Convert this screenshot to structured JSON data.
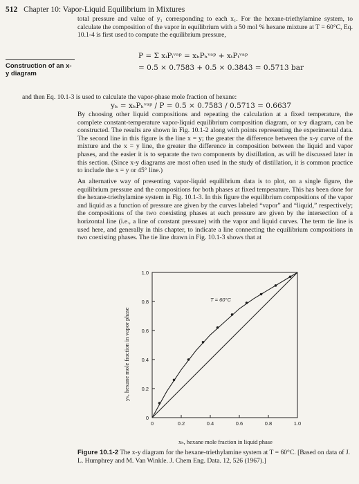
{
  "header": {
    "page_number": "512",
    "chapter": "Chapter 10: Vapor-Liquid Equilibrium in Mixtures"
  },
  "sidebar_heading": "Construction of an x-y diagram",
  "paragraphs": [
    "total pressure and value of y₁ corresponding to each x₁. For the hexane-triethylamine system, to calculate the composition of the vapor in equilibrium with a 50 mol % hexane mixture at T = 60°C, Eq. 10.1-4 is first used to compute the equilibrium pressure,",
    "and then Eq. 10.1-3 is used to calculate the vapor-phase mole fraction of hexane:",
    "By choosing other liquid compositions and repeating the calculation at a fixed temperature, the complete constant-temperature vapor-liquid equilibrium composition diagram, or x-y diagram, can be constructed. The results are shown in Fig. 10.1-2 along with points representing the experimental data. The second line in this figure is the line x = y; the greater the difference between the x-y curve of the mixture and the x = y line, the greater the difference in composition between the liquid and vapor phases, and the easier it is to separate the two components by distillation, as will be discussed later in this section. (Since x-y diagrams are most often used in the study of distillation, it is common practice to include the x = y or 45° line.)",
    "An alternative way of presenting vapor-liquid equilibrium data is to plot, on a single figure, the equilibrium pressure and the compositions for both phases at fixed temperature. This has been done for the hexane-triethylamine system in Fig. 10.1-3. In this figure the equilibrium compositions of the vapor and liquid as a function of pressure are given by the curves labeled “vapor” and “liquid,” respectively; the compositions of the two coexisting phases at each pressure are given by the intersection of a horizontal line (i.e., a line of constant pressure) with the vapor and liquid curves. The term tie line is used here, and generally in this chapter, to indicate a line connecting the equilibrium compositions in two coexisting phases. The tie line drawn in Fig. 10.1-3 shows that at"
  ],
  "equations": {
    "eq1": "P = Σ xᵢPᵢᵛᵃᵖ = xₕPₕᵛᵃᵖ + xₜPₜᵛᵃᵖ",
    "eq2": "= 0.5 × 0.7583 + 0.5 × 0.3843 = 0.5713 bar",
    "eq3": "yₕ = xₕPₕᵛᵃᵖ / P = 0.5 × 0.7583 / 0.5713 = 0.6637"
  },
  "chart_data": {
    "type": "line",
    "annotation": "T = 60°C",
    "xlabel": "xₕ, hexane mole fraction in liquid phase",
    "ylabel": "yₕ, hexane mole fraction in vapor phase",
    "xlim": [
      0,
      1
    ],
    "ylim": [
      0,
      1
    ],
    "x_ticks": [
      "0",
      "0.2",
      "0.4",
      "0.6",
      "0.8",
      "1.0"
    ],
    "y_ticks": [
      "0",
      "0.2",
      "0.4",
      "0.6",
      "0.8",
      "1.0"
    ],
    "series": [
      {
        "x": [
          0,
          0.1,
          0.2,
          0.3,
          0.4,
          0.5,
          0.6,
          0.7,
          0.8,
          0.9,
          1.0
        ],
        "y": [
          0,
          0.18,
          0.33,
          0.46,
          0.57,
          0.66,
          0.75,
          0.82,
          0.88,
          0.94,
          1.0
        ]
      },
      {
        "x": [
          0,
          1
        ],
        "y": [
          0,
          1
        ]
      }
    ],
    "points": {
      "x": [
        0.05,
        0.15,
        0.25,
        0.35,
        0.45,
        0.55,
        0.65,
        0.75,
        0.85,
        0.95
      ],
      "y": [
        0.1,
        0.26,
        0.4,
        0.52,
        0.62,
        0.71,
        0.79,
        0.85,
        0.91,
        0.97
      ]
    }
  },
  "caption": {
    "label": "Figure 10.1-2",
    "text": "The x-y diagram for the hexane-triethylamine system at T = 60°C. [Based on data of J. L. Humphrey and M. Van Winkle. J. Chem Eng. Data. 12, 526 (1967).]"
  }
}
